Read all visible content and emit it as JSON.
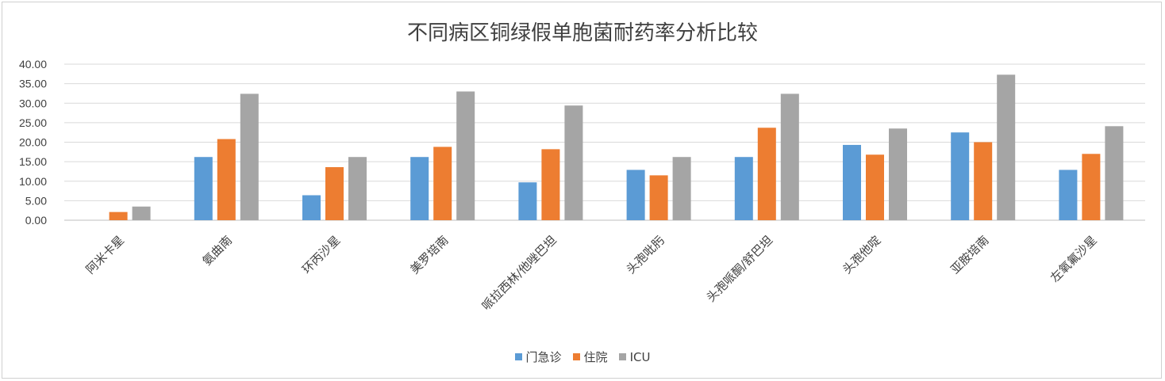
{
  "chart_data": {
    "type": "bar",
    "title": "不同病区铜绿假单胞菌耐药率分析比较",
    "xlabel": "",
    "ylabel": "",
    "ylim": [
      0,
      40
    ],
    "yticks": [
      "0.00",
      "5.00",
      "10.00",
      "15.00",
      "20.00",
      "25.00",
      "30.00",
      "35.00",
      "40.00"
    ],
    "grid": true,
    "legend_position": "bottom",
    "categories": [
      "阿米卡星",
      "氨曲南",
      "环丙沙星",
      "美罗培南",
      "哌拉西林/他唑巴坦",
      "头孢吡肟",
      "头孢哌酮/舒巴坦",
      "头孢他啶",
      "亚胺培南",
      "左氧氟沙星"
    ],
    "series": [
      {
        "name": "门急诊",
        "color": "#5b9bd5",
        "values": [
          0,
          16.2,
          6.4,
          16.2,
          9.7,
          12.9,
          16.2,
          19.3,
          22.5,
          12.9
        ]
      },
      {
        "name": "住院",
        "color": "#ed7d31",
        "values": [
          2.1,
          20.8,
          13.6,
          18.8,
          18.2,
          11.5,
          23.7,
          16.8,
          20.0,
          17.0
        ]
      },
      {
        "name": "ICU",
        "color": "#a5a5a5",
        "values": [
          3.5,
          32.4,
          16.2,
          33.0,
          29.4,
          16.2,
          32.4,
          23.5,
          37.3,
          24.1
        ]
      }
    ]
  }
}
